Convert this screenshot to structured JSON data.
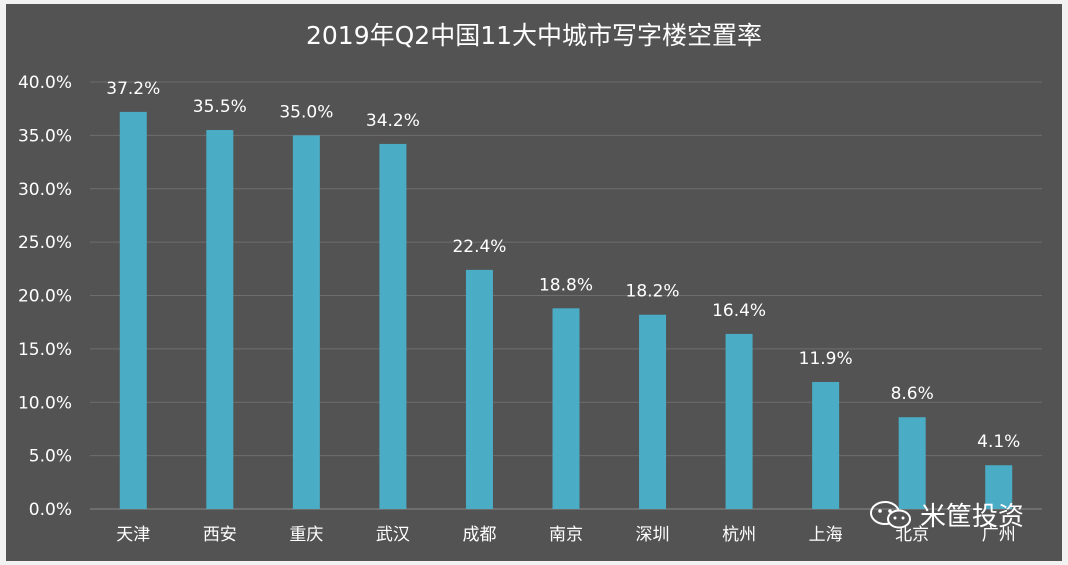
{
  "chart_data": {
    "type": "bar",
    "title": "2019年Q2中国11大中城市写字楼空置率",
    "categories": [
      "天津",
      "西安",
      "重庆",
      "武汉",
      "成都",
      "南京",
      "深圳",
      "杭州",
      "上海",
      "北京",
      "广州"
    ],
    "values": [
      37.2,
      35.5,
      35.0,
      34.2,
      22.4,
      18.8,
      18.2,
      16.4,
      11.9,
      8.6,
      4.1
    ],
    "data_labels": [
      "37.2%",
      "35.5%",
      "35.0%",
      "34.2%",
      "22.4%",
      "18.8%",
      "18.2%",
      "16.4%",
      "11.9%",
      "8.6%",
      "4.1%"
    ],
    "yticks": [
      "0.0%",
      "5.0%",
      "10.0%",
      "15.0%",
      "20.0%",
      "25.0%",
      "30.0%",
      "35.0%",
      "40.0%"
    ],
    "ylim": [
      0,
      40
    ],
    "grid": true,
    "bar_color": "#4bacc6",
    "background_color": "#535353"
  },
  "watermark": {
    "text": "米筐投资",
    "icon": "wechat-icon"
  }
}
